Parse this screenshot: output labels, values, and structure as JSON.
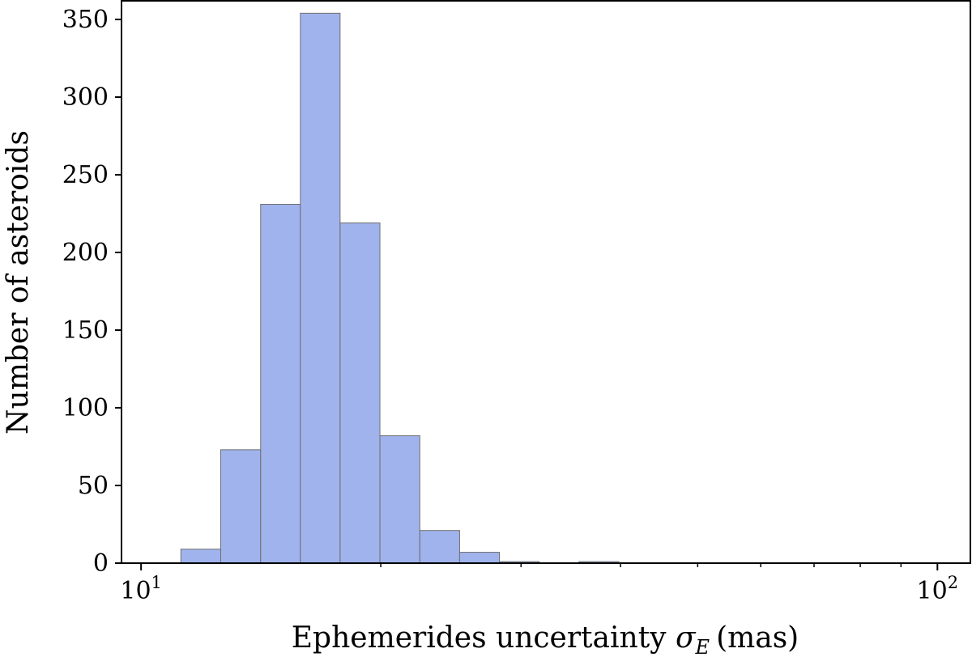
{
  "chart_data": {
    "type": "bar",
    "xscale": "log",
    "xlim": [
      9.45,
      110
    ],
    "ylim": [
      0,
      362
    ],
    "xlabel_text": "Ephemerides uncertainty",
    "xlabel_symbol": "σ",
    "xlabel_subscript": "E",
    "xlabel_unit": "(mas)",
    "ylabel": "Number of asteroids",
    "xticks": [
      {
        "value": 10,
        "base": "10",
        "exp": "1"
      },
      {
        "value": 100,
        "base": "10",
        "exp": "2"
      }
    ],
    "yticks": [
      0,
      50,
      100,
      150,
      200,
      250,
      300,
      350
    ],
    "bin_edges": [
      11.22,
      12.59,
      14.13,
      15.85,
      17.78,
      19.95,
      22.39,
      25.12,
      28.18,
      31.62,
      35.48,
      39.81,
      44.67
    ],
    "values": [
      9,
      73,
      231,
      354,
      219,
      82,
      21,
      7,
      1,
      0,
      1,
      0
    ],
    "grid": false,
    "legend": "none",
    "bar_color": "#a0b3ed",
    "edge_color": "#6f6f6f"
  }
}
